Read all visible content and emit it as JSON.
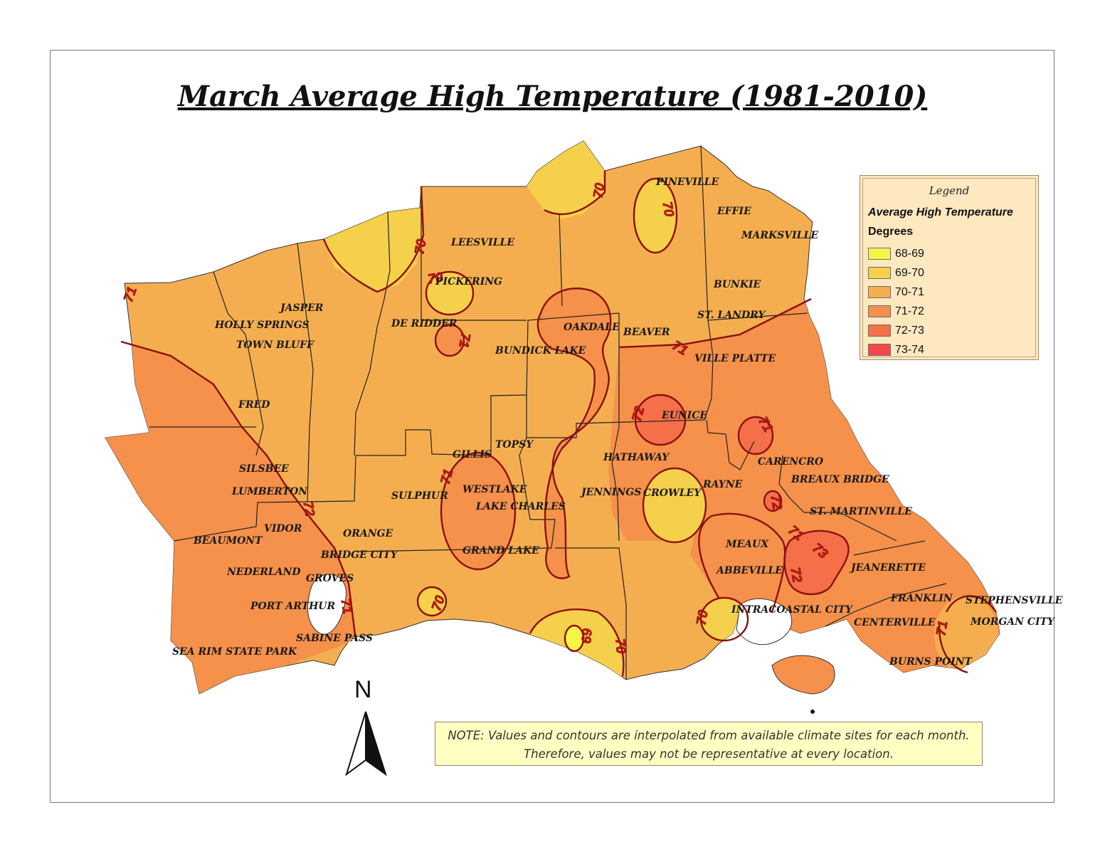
{
  "title": "March Average High Temperature (1981-2010)",
  "legend": {
    "heading": "Legend",
    "subtitle": "Average High Temperature",
    "units": "Degrees",
    "classes": [
      {
        "label": "68-69",
        "color": "#f5f545"
      },
      {
        "label": "69-70",
        "color": "#f5d04b"
      },
      {
        "label": "70-71",
        "color": "#f5ae4f"
      },
      {
        "label": "71-72",
        "color": "#f5914b"
      },
      {
        "label": "72-73",
        "color": "#f57049"
      },
      {
        "label": "73-74",
        "color": "#f54747"
      }
    ]
  },
  "note": {
    "line1": "NOTE: Values and contours are interpolated from available climate sites for each month.",
    "line2": "Therefore, values may not be representative at every location."
  },
  "north_arrow": "N",
  "contour_labels": [
    "71",
    "70",
    "70",
    "70",
    "70",
    "71",
    "71",
    "72",
    "72",
    "71",
    "71",
    "71",
    "72",
    "71",
    "73",
    "72",
    "70",
    "70",
    "69",
    "70",
    "71",
    "71"
  ],
  "places": [
    "PINEVILLE",
    "EFFIE",
    "MARKSVILLE",
    "LEESVILLE",
    "PICKERING",
    "BUNKIE",
    "JASPER",
    "HOLLY SPRINGS",
    "DE RIDDER",
    "OAKDALE",
    "BEAVER",
    "ST. LANDRY",
    "TOWN BLUFF",
    "BUNDICK LAKE",
    "VILLE PLATTE",
    "FRED",
    "EUNICE",
    "TOPSY",
    "GILLIS",
    "HATHAWAY",
    "CARENCRO",
    "SILSBEE",
    "BREAUX BRIDGE",
    "RAYNE",
    "WESTLAKE",
    "LUMBERTON",
    "SULPHUR",
    "JENNINGS",
    "CROWLEY",
    "LAKE CHARLES",
    "ST. MARTINVILLE",
    "VIDOR",
    "ORANGE",
    "BEAUMONT",
    "MEAUX",
    "BRIDGE CITY",
    "GRAND LAKE",
    "NEDERLAND",
    "ABBEVILLE",
    "JEANERETTE",
    "GROVES",
    "FRANKLIN",
    "STEPHENSVILLE",
    "PORT ARTHUR",
    "INTRACOASTAL CITY",
    "CENTERVILLE",
    "MORGAN CITY",
    "SABINE PASS",
    "SEA RIM STATE PARK",
    "BURNS POINT"
  ]
}
